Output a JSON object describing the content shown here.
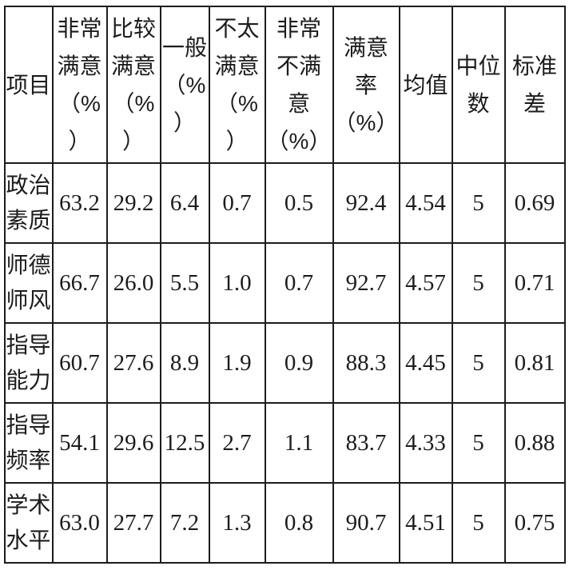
{
  "colors": {
    "background": "#ffffff",
    "border": "#1c1c1c",
    "text": "#1c1c1c"
  },
  "display": {
    "header": [
      "项目",
      "非常\n满意\n（%\n）",
      "比较\n满意\n（%\n）",
      "一般\n（%\n）",
      "不太\n满意\n（%\n）",
      "非常\n不满\n意\n（%）",
      "满意\n率\n（%）",
      "均值",
      "中位\n数",
      "标准\n差"
    ],
    "rows": [
      {
        "label": "政治\n素质",
        "values": [
          "63.2",
          "29.2",
          "6.4",
          "0.7",
          "0.5",
          "92.4",
          "4.54",
          "5",
          "0.69"
        ]
      },
      {
        "label": "师德\n师风",
        "values": [
          "66.7",
          "26.0",
          "5.5",
          "1.0",
          "0.7",
          "92.7",
          "4.57",
          "5",
          "0.71"
        ]
      },
      {
        "label": "指导\n能力",
        "values": [
          "60.7",
          "27.6",
          "8.9",
          "1.9",
          "0.9",
          "88.3",
          "4.45",
          "5",
          "0.81"
        ]
      },
      {
        "label": "指导\n频率",
        "values": [
          "54.1",
          "29.6",
          "12.5",
          "2.7",
          "1.1",
          "83.7",
          "4.33",
          "5",
          "0.88"
        ]
      },
      {
        "label": "学术\n水平",
        "values": [
          "63.0",
          "27.7",
          "7.2",
          "1.3",
          "0.8",
          "90.7",
          "4.51",
          "5",
          "0.75"
        ]
      }
    ]
  },
  "chart_data": {
    "type": "table",
    "columns": [
      "项目",
      "非常满意（%）",
      "比较满意（%）",
      "一般（%）",
      "不太满意（%）",
      "非常不满意（%）",
      "满意率（%）",
      "均值",
      "中位数",
      "标准差"
    ],
    "rows": [
      [
        "政治素质",
        63.2,
        29.2,
        6.4,
        0.7,
        0.5,
        92.4,
        4.54,
        5,
        0.69
      ],
      [
        "师德师风",
        66.7,
        26.0,
        5.5,
        1.0,
        0.7,
        92.7,
        4.57,
        5,
        0.71
      ],
      [
        "指导能力",
        60.7,
        27.6,
        8.9,
        1.9,
        0.9,
        88.3,
        4.45,
        5,
        0.81
      ],
      [
        "指导频率",
        54.1,
        29.6,
        12.5,
        2.7,
        1.1,
        83.7,
        4.33,
        5,
        0.88
      ],
      [
        "学术水平",
        63.0,
        27.7,
        7.2,
        1.3,
        0.8,
        90.7,
        4.51,
        5,
        0.75
      ]
    ]
  }
}
